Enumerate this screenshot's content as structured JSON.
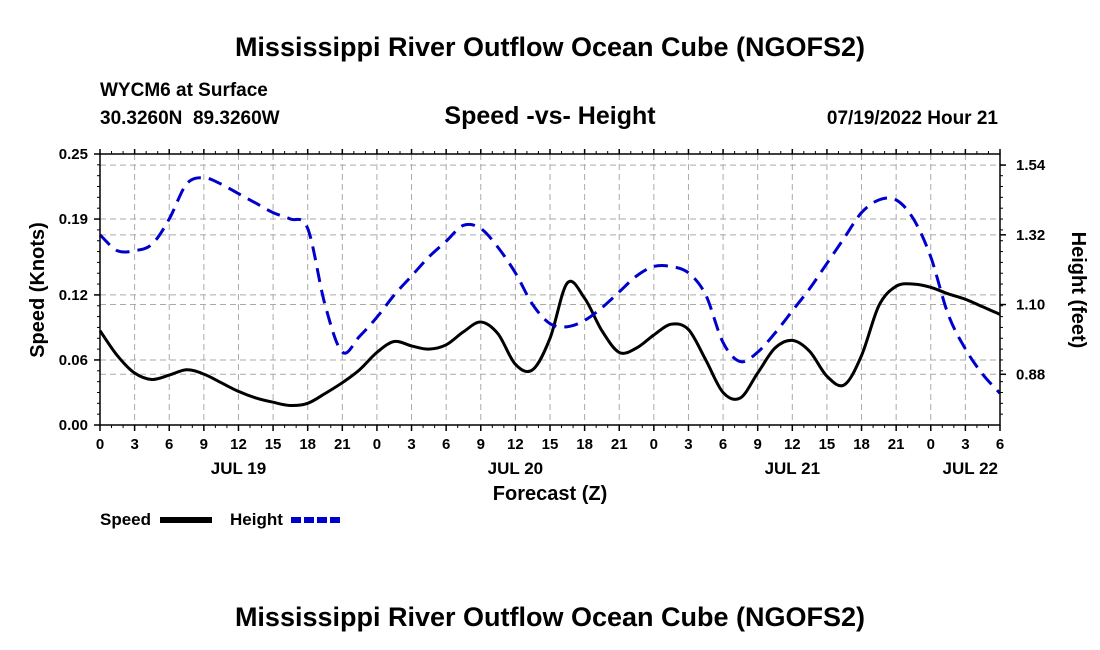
{
  "page": {
    "title": "Mississippi River Outflow Ocean Cube (NGOFS2)",
    "footer_title": "Mississippi River Outflow Ocean Cube (NGOFS2)"
  },
  "header": {
    "station": "WYCM6 at Surface",
    "coords": "30.3260N  89.3260W",
    "subtitle": "Speed -vs- Height",
    "datetime": "07/19/2022 Hour 21"
  },
  "colors": {
    "speed": "#000000",
    "height": "#0000cc",
    "grid": "#aaaaaa"
  },
  "chart_data": {
    "type": "line",
    "title": "Speed -vs- Height",
    "xlabel": "Forecast (Z)",
    "ylabel": "Speed (Knots)",
    "y2label": "Height (feet)",
    "xlim": [
      0,
      78
    ],
    "ylim": [
      0,
      0.25
    ],
    "y2lim": [
      0.72,
      1.575
    ],
    "x_ticks": [
      0,
      3,
      6,
      9,
      12,
      15,
      18,
      21,
      24,
      27,
      30,
      33,
      36,
      39,
      42,
      45,
      48,
      51,
      54,
      57,
      60,
      63,
      66,
      69,
      72,
      75,
      78
    ],
    "x_tick_labels": [
      "0",
      "3",
      "6",
      "9",
      "12",
      "15",
      "18",
      "21",
      "0",
      "3",
      "6",
      "9",
      "12",
      "15",
      "18",
      "21",
      "0",
      "3",
      "6",
      "9",
      "12",
      "15",
      "18",
      "21",
      "0",
      "3",
      "6"
    ],
    "date_labels": [
      {
        "x": 12,
        "label": "JUL 19"
      },
      {
        "x": 36,
        "label": "JUL 20"
      },
      {
        "x": 60,
        "label": "JUL 21"
      },
      {
        "x": 78,
        "label": "JUL 22"
      }
    ],
    "y_ticks": [
      0.0,
      0.06,
      0.12,
      0.19,
      0.25
    ],
    "y_tick_labels": [
      "0.00",
      "0.06",
      "0.12",
      "0.19",
      "0.25"
    ],
    "y2_ticks": [
      0.88,
      1.1,
      1.32,
      1.54
    ],
    "y2_tick_labels": [
      "0.88",
      "1.10",
      "1.32",
      "1.54"
    ],
    "grid": true,
    "series": [
      {
        "name": "Speed",
        "axis": "left",
        "style": "solid",
        "x": [
          0,
          1.5,
          3,
          4.5,
          6,
          7.5,
          9,
          10.5,
          12,
          13.5,
          15,
          16.5,
          18,
          19.5,
          21,
          22.5,
          24,
          25.5,
          27,
          28.5,
          30,
          31.5,
          33,
          34.5,
          36,
          37.5,
          39,
          40.5,
          42,
          43.5,
          45,
          46.5,
          48,
          49.5,
          51,
          52.5,
          54,
          55.5,
          57,
          58.5,
          60,
          61.5,
          63,
          64.5,
          66,
          67.5,
          69,
          70.5,
          72,
          73.5,
          75,
          76.5,
          78
        ],
        "values": [
          0.087,
          0.064,
          0.048,
          0.042,
          0.046,
          0.051,
          0.047,
          0.039,
          0.031,
          0.025,
          0.021,
          0.018,
          0.02,
          0.029,
          0.039,
          0.051,
          0.067,
          0.077,
          0.073,
          0.07,
          0.074,
          0.086,
          0.095,
          0.084,
          0.056,
          0.051,
          0.08,
          0.131,
          0.117,
          0.087,
          0.067,
          0.071,
          0.083,
          0.093,
          0.088,
          0.06,
          0.03,
          0.025,
          0.048,
          0.071,
          0.078,
          0.068,
          0.045,
          0.037,
          0.064,
          0.11,
          0.128,
          0.13,
          0.127,
          0.121,
          0.116,
          0.109,
          0.102
        ]
      },
      {
        "name": "Height",
        "axis": "right",
        "style": "dashed",
        "x": [
          0,
          1.5,
          3,
          4.5,
          6,
          7.5,
          9,
          10.5,
          12,
          13.5,
          15,
          16.5,
          18,
          19.5,
          21,
          22.5,
          24,
          25.5,
          27,
          28.5,
          30,
          31.5,
          33,
          34.5,
          36,
          37.5,
          39,
          40.5,
          42,
          43.5,
          45,
          46.5,
          48,
          49.5,
          51,
          52.5,
          54,
          55.5,
          57,
          58.5,
          60,
          61.5,
          63,
          64.5,
          66,
          67.5,
          69,
          70.5,
          72,
          73.5,
          75,
          76.5,
          78
        ],
        "values": [
          1.32,
          1.27,
          1.27,
          1.29,
          1.37,
          1.48,
          1.5,
          1.48,
          1.45,
          1.42,
          1.39,
          1.37,
          1.34,
          1.1,
          0.95,
          1.0,
          1.06,
          1.13,
          1.19,
          1.25,
          1.3,
          1.35,
          1.34,
          1.28,
          1.2,
          1.1,
          1.04,
          1.03,
          1.05,
          1.09,
          1.14,
          1.19,
          1.22,
          1.22,
          1.2,
          1.13,
          0.98,
          0.92,
          0.95,
          1.01,
          1.08,
          1.15,
          1.23,
          1.31,
          1.39,
          1.43,
          1.43,
          1.37,
          1.25,
          1.07,
          0.96,
          0.88,
          0.82
        ]
      }
    ]
  },
  "legend": {
    "speed_label": "Speed",
    "height_label": "Height"
  }
}
